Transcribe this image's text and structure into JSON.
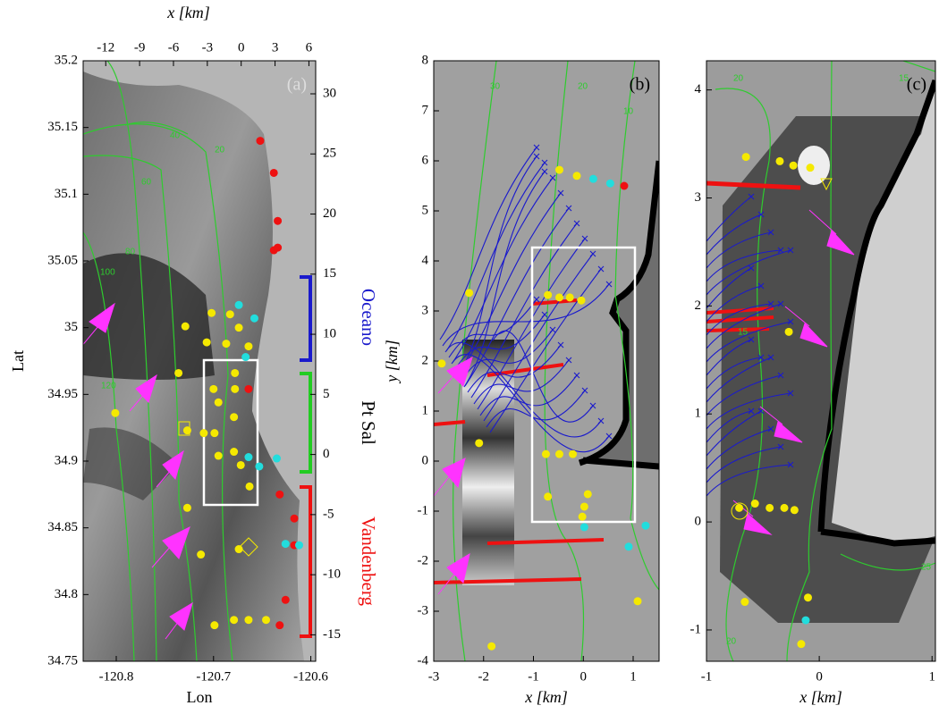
{
  "chart_data": [
    {
      "type": "scatter",
      "label": "(a)",
      "xlabel": "Lon",
      "ylabel": "Lat",
      "x2label": "x [km]",
      "xlim": [
        -120.834,
        -120.595
      ],
      "xticks": [
        -120.8,
        -120.7,
        -120.6
      ],
      "ylim": [
        34.75,
        35.2
      ],
      "yticks": [
        34.75,
        34.8,
        34.85,
        34.9,
        34.95,
        35,
        35.05,
        35.1,
        35.15,
        35.2
      ],
      "x2lim": [
        -14,
        6.6
      ],
      "x2ticks": [
        -12,
        -9,
        -6,
        -3,
        0,
        3,
        6
      ],
      "y2lim": [
        -17.2,
        32.75
      ],
      "y2ticks": [
        -15,
        -10,
        -5,
        0,
        5,
        10,
        15,
        20,
        25,
        30
      ],
      "regions": [
        "Oceano",
        "Pt Sal",
        "Vandenberg"
      ],
      "contour_labels": [
        "20",
        "40",
        "60",
        "80",
        "100",
        "120"
      ],
      "series": [
        {
          "color": "#f5e900",
          "x": [
            -120.702,
            -120.683,
            -120.707,
            -120.687,
            -120.674,
            -120.729,
            -120.664,
            -120.678,
            -120.736,
            -120.7,
            -120.678,
            -120.801,
            -120.695,
            -120.71,
            -120.699,
            -120.679,
            -120.727,
            -120.679,
            -120.695,
            -120.672,
            -120.663,
            -120.727,
            -120.713,
            -120.674,
            -120.699,
            -120.679,
            -120.664,
            -120.646
          ],
          "y": [
            35.011,
            35.01,
            34.989,
            34.988,
            35.0,
            35.001,
            34.986,
            34.966,
            34.966,
            34.954,
            34.954,
            34.936,
            34.944,
            34.921,
            34.921,
            34.933,
            34.923,
            34.907,
            34.904,
            34.897,
            34.881,
            34.865,
            34.83,
            34.834,
            34.777,
            34.781,
            34.781,
            34.781
          ]
        },
        {
          "color": "#ee1111",
          "x": [
            -120.652,
            -120.638,
            -120.634,
            -120.638,
            -120.634,
            -120.664,
            -120.632,
            -120.617,
            -120.617,
            -120.626,
            -120.632
          ],
          "y": [
            35.14,
            35.116,
            35.08,
            35.058,
            35.06,
            34.954,
            34.875,
            34.857,
            34.837,
            34.796,
            34.777
          ]
        },
        {
          "color": "#22dddd",
          "x": [
            -120.674,
            -120.658,
            -120.667,
            -120.664,
            -120.653,
            -120.626,
            -120.612,
            -120.635
          ],
          "y": [
            35.017,
            35.007,
            34.978,
            34.903,
            34.896,
            34.838,
            34.837,
            34.902
          ]
        }
      ]
    },
    {
      "type": "scatter",
      "label": "(b)",
      "xlabel": "x [km]",
      "ylabel": "y [km]",
      "xlim": [
        -3,
        1.52
      ],
      "xticks": [
        -3,
        -2,
        -1,
        0,
        1
      ],
      "ylim": [
        -4,
        8
      ],
      "yticks": [
        -4,
        -3,
        -2,
        -1,
        0,
        1,
        2,
        3,
        4,
        5,
        6,
        7,
        8
      ],
      "contour_labels": [
        "30",
        "20",
        "10"
      ],
      "series": [
        {
          "color": "#f5e900",
          "x": [
            -2.29,
            -2.84,
            -0.48,
            -0.13,
            -0.71,
            -0.48,
            -0.27,
            -0.04,
            -0.75,
            -0.48,
            -0.21,
            -0.71,
            0.09,
            0.02,
            -0.02,
            1.09,
            -1.84,
            -2.09
          ],
          "y": [
            3.36,
            1.95,
            5.82,
            5.7,
            3.32,
            3.27,
            3.27,
            3.21,
            0.14,
            0.14,
            0.14,
            -0.71,
            -0.66,
            -0.91,
            -1.11,
            -2.8,
            -3.7,
            0.36
          ]
        },
        {
          "color": "#ee1111",
          "x": [
            0.82
          ],
          "y": [
            5.5
          ]
        },
        {
          "color": "#22dddd",
          "x": [
            0.2,
            0.54,
            0.02,
            0.91,
            1.25
          ],
          "y": [
            5.64,
            5.55,
            -1.32,
            -1.71,
            -1.29
          ]
        }
      ]
    },
    {
      "type": "scatter",
      "label": "(c)",
      "xlabel": "x [km]",
      "xlim": [
        -1,
        1.03
      ],
      "xticks": [
        -1,
        0,
        1
      ],
      "ylim": [
        -1.29,
        4.27
      ],
      "yticks": [
        -1,
        0,
        1,
        2,
        3,
        4
      ],
      "contour_labels": [
        "20",
        "15",
        "15",
        "25",
        "20"
      ],
      "series": [
        {
          "color": "#f5e900",
          "x": [
            -0.65,
            -0.35,
            -0.23,
            -0.08,
            -0.27,
            -0.71,
            -0.57,
            -0.44,
            -0.31,
            -0.22,
            -0.66,
            -0.1,
            -0.16
          ],
          "y": [
            3.38,
            3.34,
            3.3,
            3.28,
            1.76,
            0.13,
            0.17,
            0.13,
            0.13,
            0.11,
            -0.74,
            -0.7,
            -1.13
          ]
        },
        {
          "color": "#22dddd",
          "x": [
            -0.12
          ],
          "y": [
            -0.91
          ]
        }
      ]
    }
  ]
}
